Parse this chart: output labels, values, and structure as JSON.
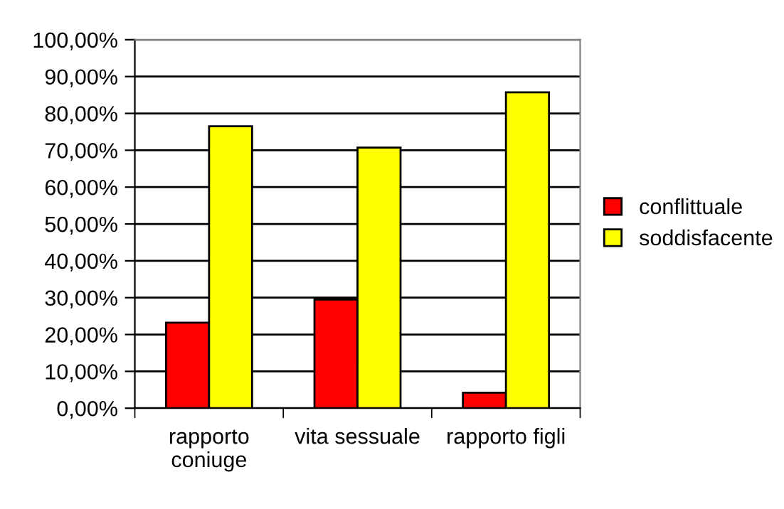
{
  "chart_data": {
    "type": "bar",
    "categories": [
      "rapporto\nconiuge",
      "vita sessuale",
      "rapporto figli"
    ],
    "series": [
      {
        "name": "conflittuale",
        "color": "#ff0000",
        "values": [
          23.2,
          29.5,
          4.2
        ]
      },
      {
        "name": "soddisfacente",
        "color": "#ffff00",
        "values": [
          76.5,
          70.7,
          85.7
        ]
      }
    ],
    "ylim": [
      0,
      100
    ],
    "yticks": [
      {
        "value": 0,
        "label": "0,00%"
      },
      {
        "value": 10,
        "label": "10,00%"
      },
      {
        "value": 20,
        "label": "20,00%"
      },
      {
        "value": 30,
        "label": "30,00%"
      },
      {
        "value": 40,
        "label": "40,00%"
      },
      {
        "value": 50,
        "label": "50,00%"
      },
      {
        "value": 60,
        "label": "60,00%"
      },
      {
        "value": 70,
        "label": "70,00%"
      },
      {
        "value": 80,
        "label": "80,00%"
      },
      {
        "value": 90,
        "label": "90,00%"
      },
      {
        "value": 100,
        "label": "100,00%"
      }
    ],
    "grid": "y",
    "legend": "right"
  }
}
